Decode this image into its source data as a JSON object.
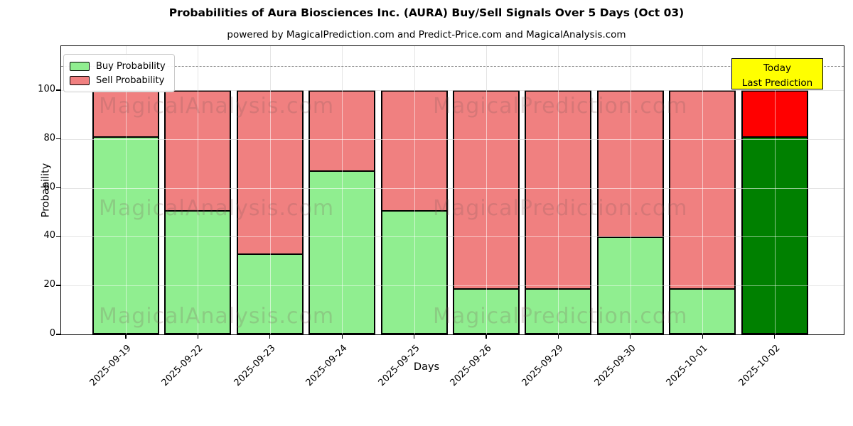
{
  "title": "Probabilities of Aura Biosciences Inc. (AURA) Buy/Sell Signals Over 5 Days (Oct 03)",
  "subtitle": "powered by MagicalPrediction.com and Predict-Price.com and MagicalAnalysis.com",
  "legend": {
    "buy_label": "Buy Probability",
    "sell_label": "Sell Probability"
  },
  "annotation": {
    "line1": "Today",
    "line2": "Last Prediction"
  },
  "watermarks": {
    "left_text": "MagicalAnalysis.com",
    "right_text": "MagicalPrediction.com"
  },
  "colors": {
    "buy": "#90ee90",
    "sell": "#f08080",
    "buy_today": "#008000",
    "sell_today": "#ff0000",
    "annotation_bg": "#ffff00",
    "watermark": "rgba(125,85,85,0.22)",
    "grid": "#c6c6c6",
    "dashed": "#8a8a8a"
  },
  "chart_data": {
    "type": "bar",
    "stacked": true,
    "title": "Probabilities of Aura Biosciences Inc. (AURA) Buy/Sell Signals Over 5 Days (Oct 03)",
    "xlabel": "Days",
    "ylabel": "Probability",
    "categories": [
      "2025-09-19",
      "2025-09-22",
      "2025-09-23",
      "2025-09-24",
      "2025-09-25",
      "2025-09-26",
      "2025-09-29",
      "2025-09-30",
      "2025-10-01",
      "2025-10-02"
    ],
    "series": [
      {
        "name": "Buy Probability",
        "color": "#90ee90",
        "values": [
          81,
          51,
          33,
          67,
          51,
          19,
          19,
          40,
          19,
          81
        ]
      },
      {
        "name": "Sell Probability",
        "color": "#f08080",
        "values": [
          19,
          49,
          67,
          33,
          49,
          81,
          81,
          60,
          81,
          19
        ]
      }
    ],
    "today_bar_index": 9,
    "today_bar_colors": {
      "buy": "#008000",
      "sell": "#ff0000"
    },
    "ylim": [
      0,
      118
    ],
    "yticks": [
      0,
      20,
      40,
      60,
      80,
      100
    ],
    "dashed_line_y": 110,
    "grid": true,
    "legend_position": "upper left",
    "annotation_box": "Today / Last Prediction"
  }
}
